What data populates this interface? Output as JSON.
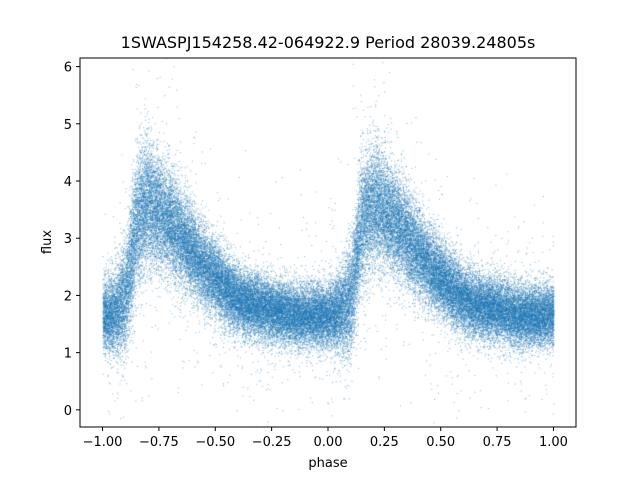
{
  "chart_data": {
    "type": "scatter",
    "title": "1SWASPJ154258.42-064922.9 Period 28039.24805s",
    "xlabel": "phase",
    "ylabel": "flux",
    "xlim": [
      -1.1,
      1.1
    ],
    "ylim": [
      -0.3,
      6.15
    ],
    "xticks": [
      -1.0,
      -0.75,
      -0.5,
      -0.25,
      0.0,
      0.25,
      0.5,
      0.75,
      1.0
    ],
    "xtick_labels": [
      "−1.00",
      "−0.75",
      "−0.50",
      "−0.25",
      "0.00",
      "0.25",
      "0.50",
      "0.75",
      "1.00"
    ],
    "yticks": [
      0,
      1,
      2,
      3,
      4,
      5,
      6
    ],
    "ytick_labels": [
      "0",
      "1",
      "2",
      "3",
      "4",
      "5",
      "6"
    ],
    "grid": false,
    "marker_color": "#1f77b4",
    "phase_range": [
      -1.0,
      1.0
    ],
    "folded_period_phase": 1.0,
    "envelope": {
      "phase": [
        0.0,
        0.05,
        0.1,
        0.15,
        0.2,
        0.25,
        0.3,
        0.35,
        0.4,
        0.45,
        0.5,
        0.55,
        0.6,
        0.65,
        0.7,
        0.75,
        0.8,
        0.85,
        0.9,
        0.95,
        1.0
      ],
      "median_flux": [
        1.65,
        1.7,
        1.95,
        3.3,
        3.6,
        3.45,
        3.25,
        3.0,
        2.75,
        2.5,
        2.3,
        2.1,
        1.95,
        1.85,
        1.8,
        1.75,
        1.7,
        1.65,
        1.65,
        1.65,
        1.65
      ],
      "spread": [
        0.3,
        0.35,
        0.5,
        0.6,
        0.55,
        0.5,
        0.45,
        0.42,
        0.38,
        0.35,
        0.33,
        0.3,
        0.3,
        0.28,
        0.28,
        0.27,
        0.27,
        0.27,
        0.27,
        0.27,
        0.27
      ]
    },
    "n_points": 60000
  }
}
